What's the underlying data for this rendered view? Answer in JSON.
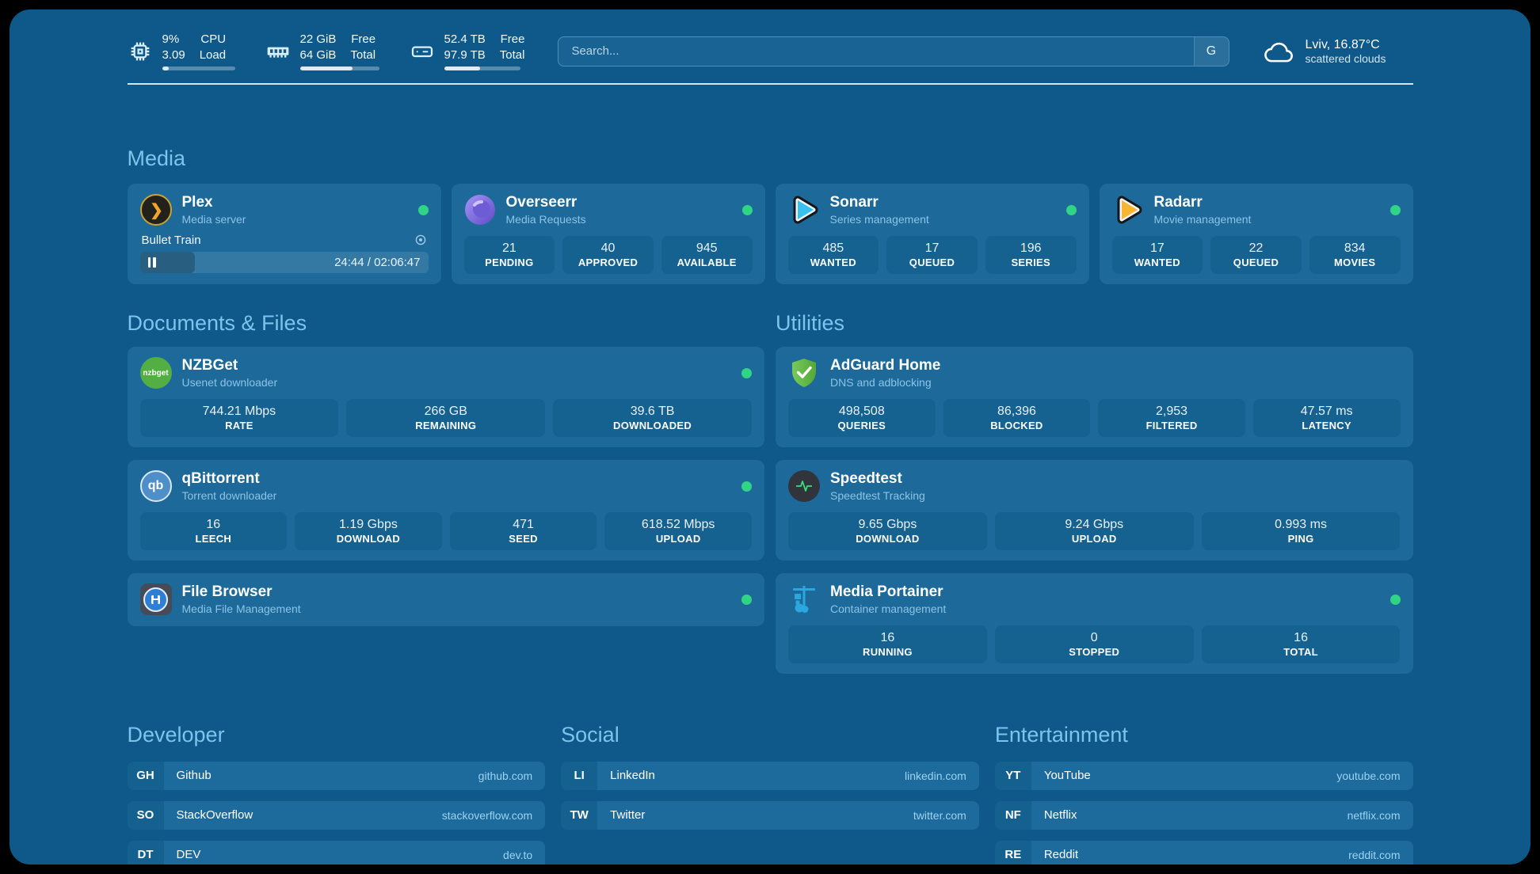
{
  "colors": {
    "background": "#0e598a",
    "card": "#1d6a9a",
    "tile": "#15618f",
    "heading_accent": "#7dc4ec",
    "status_online": "#2fd584",
    "url_text": "#9dd2f2"
  },
  "header": {
    "system_stats": [
      {
        "icon": "cpu-icon",
        "value1": "9%",
        "value2": "3.09",
        "label1": "CPU",
        "label2": "Load",
        "progress": 9
      },
      {
        "icon": "ram-icon",
        "value1": "22 GiB",
        "value2": "64 GiB",
        "label1": "Free",
        "label2": "Total",
        "progress": 66
      },
      {
        "icon": "disk-icon",
        "value1": "52.4 TB",
        "value2": "97.9 TB",
        "label1": "Free",
        "label2": "Total",
        "progress": 47
      }
    ],
    "search": {
      "placeholder": "Search...",
      "engine_label": "G"
    },
    "weather": {
      "icon": "cloud-icon",
      "location": "Lviv, 16.87°C",
      "condition": "scattered clouds"
    }
  },
  "sections": {
    "media": {
      "heading": "Media",
      "cards": [
        {
          "icon": "plex-icon",
          "name": "Plex",
          "desc": "Media server",
          "status": "online",
          "now_playing": {
            "title": "Bullet Train",
            "time": "24:44 / 02:06:47",
            "progress_pct": 19
          }
        },
        {
          "icon": "overseerr-icon",
          "name": "Overseerr",
          "desc": "Media Requests",
          "status": "online",
          "stats": [
            {
              "value": "21",
              "label": "PENDING"
            },
            {
              "value": "40",
              "label": "APPROVED"
            },
            {
              "value": "945",
              "label": "AVAILABLE"
            }
          ]
        },
        {
          "icon": "sonarr-icon",
          "name": "Sonarr",
          "desc": "Series management",
          "status": "online",
          "stats": [
            {
              "value": "485",
              "label": "WANTED"
            },
            {
              "value": "17",
              "label": "QUEUED"
            },
            {
              "value": "196",
              "label": "SERIES"
            }
          ]
        },
        {
          "icon": "radarr-icon",
          "name": "Radarr",
          "desc": "Movie management",
          "status": "online",
          "stats": [
            {
              "value": "17",
              "label": "WANTED"
            },
            {
              "value": "22",
              "label": "QUEUED"
            },
            {
              "value": "834",
              "label": "MOVIES"
            }
          ]
        }
      ]
    },
    "documents": {
      "heading": "Documents & Files",
      "cards": [
        {
          "icon": "nzbget-icon",
          "icon_text": "nzbget",
          "name": "NZBGet",
          "desc": "Usenet downloader",
          "status": "online",
          "stats": [
            {
              "value": "744.21 Mbps",
              "label": "RATE"
            },
            {
              "value": "266 GB",
              "label": "REMAINING"
            },
            {
              "value": "39.6 TB",
              "label": "DOWNLOADED"
            }
          ]
        },
        {
          "icon": "qbittorrent-icon",
          "icon_text": "qb",
          "name": "qBittorrent",
          "desc": "Torrent downloader",
          "status": "online",
          "stats": [
            {
              "value": "16",
              "label": "LEECH"
            },
            {
              "value": "1.19 Gbps",
              "label": "DOWNLOAD"
            },
            {
              "value": "471",
              "label": "SEED"
            },
            {
              "value": "618.52 Mbps",
              "label": "UPLOAD"
            }
          ]
        },
        {
          "icon": "filebrowser-icon",
          "name": "File Browser",
          "desc": "Media File Management",
          "status": "online"
        }
      ]
    },
    "utilities": {
      "heading": "Utilities",
      "cards": [
        {
          "icon": "adguard-icon",
          "name": "AdGuard Home",
          "desc": "DNS and adblocking",
          "stats": [
            {
              "value": "498,508",
              "label": "QUERIES"
            },
            {
              "value": "86,396",
              "label": "BLOCKED"
            },
            {
              "value": "2,953",
              "label": "FILTERED"
            },
            {
              "value": "47.57 ms",
              "label": "LATENCY"
            }
          ]
        },
        {
          "icon": "speedtest-icon",
          "name": "Speedtest",
          "desc": "Speedtest Tracking",
          "stats": [
            {
              "value": "9.65 Gbps",
              "label": "DOWNLOAD"
            },
            {
              "value": "9.24 Gbps",
              "label": "UPLOAD"
            },
            {
              "value": "0.993 ms",
              "label": "PING"
            }
          ]
        },
        {
          "icon": "portainer-icon",
          "name": "Media Portainer",
          "desc": "Container management",
          "status": "online",
          "stats": [
            {
              "value": "16",
              "label": "RUNNING"
            },
            {
              "value": "0",
              "label": "STOPPED"
            },
            {
              "value": "16",
              "label": "TOTAL"
            }
          ]
        }
      ]
    }
  },
  "bookmarks": {
    "developer": {
      "heading": "Developer",
      "links": [
        {
          "abbr": "GH",
          "name": "Github",
          "url": "github.com"
        },
        {
          "abbr": "SO",
          "name": "StackOverflow",
          "url": "stackoverflow.com"
        },
        {
          "abbr": "DT",
          "name": "DEV",
          "url": "dev.to"
        }
      ]
    },
    "social": {
      "heading": "Social",
      "links": [
        {
          "abbr": "LI",
          "name": "LinkedIn",
          "url": "linkedin.com"
        },
        {
          "abbr": "TW",
          "name": "Twitter",
          "url": "twitter.com"
        }
      ]
    },
    "entertainment": {
      "heading": "Entertainment",
      "links": [
        {
          "abbr": "YT",
          "name": "YouTube",
          "url": "youtube.com"
        },
        {
          "abbr": "NF",
          "name": "Netflix",
          "url": "netflix.com"
        },
        {
          "abbr": "RE",
          "name": "Reddit",
          "url": "reddit.com"
        }
      ]
    }
  }
}
